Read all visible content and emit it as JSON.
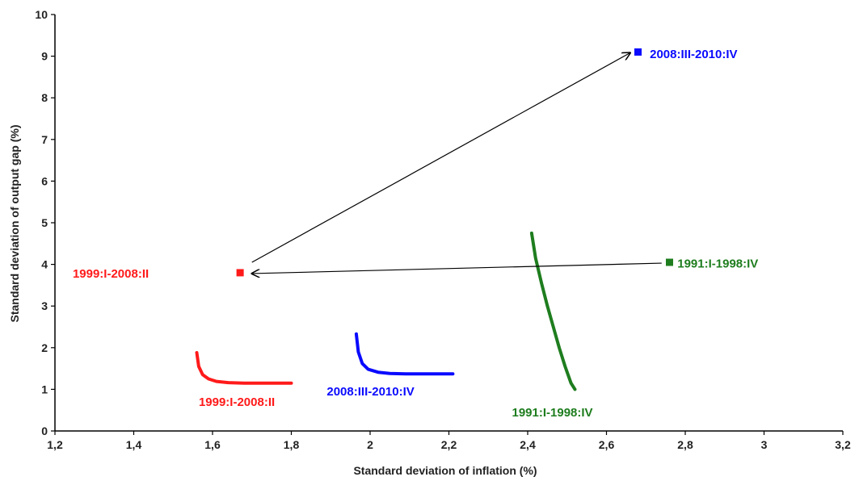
{
  "chart_data": {
    "type": "scatter",
    "title": "",
    "xlabel": "Standard deviation of inflation (%)",
    "ylabel": "Standard deviation of output gap (%)",
    "xlim": [
      1.2,
      3.2
    ],
    "ylim": [
      0,
      10
    ],
    "x_ticks": [
      1.2,
      1.4,
      1.6,
      1.8,
      2.0,
      2.2,
      2.4,
      2.6,
      2.8,
      3.0,
      3.2
    ],
    "x_tick_labels": [
      "1,2",
      "1,4",
      "1,6",
      "1,8",
      "2",
      "2,2",
      "2,4",
      "2,6",
      "2,8",
      "3",
      "3,2"
    ],
    "y_ticks": [
      0,
      1,
      2,
      3,
      4,
      5,
      6,
      7,
      8,
      9,
      10
    ],
    "y_tick_labels": [
      "0",
      "1",
      "2",
      "3",
      "4",
      "5",
      "6",
      "7",
      "8",
      "9",
      "10"
    ],
    "grid": false,
    "points": [
      {
        "label": "1999:I-2008:II",
        "x": 1.67,
        "y": 3.8,
        "color": "#ff1a1a"
      },
      {
        "label": "2008:III-2010:IV",
        "x": 2.68,
        "y": 9.1,
        "color": "#0a0aff"
      },
      {
        "label": "1991:I-1998:IV",
        "x": 2.76,
        "y": 4.05,
        "color": "#1e7d1e"
      }
    ],
    "frontiers": [
      {
        "label": "1999:I-2008:II",
        "color": "#ff1a1a",
        "x": [
          1.56,
          1.565,
          1.575,
          1.59,
          1.61,
          1.64,
          1.68,
          1.72,
          1.76,
          1.8
        ],
        "y": [
          1.88,
          1.55,
          1.35,
          1.25,
          1.19,
          1.16,
          1.15,
          1.15,
          1.15,
          1.15
        ]
      },
      {
        "label": "2008:III-2010:IV",
        "color": "#0a0aff",
        "x": [
          1.965,
          1.97,
          1.98,
          1.995,
          2.02,
          2.05,
          2.09,
          2.13,
          2.17,
          2.21
        ],
        "y": [
          2.33,
          1.9,
          1.62,
          1.48,
          1.41,
          1.38,
          1.37,
          1.37,
          1.37,
          1.37
        ]
      },
      {
        "label": "1991:I-1998:IV",
        "color": "#1e7d1e",
        "x": [
          2.41,
          2.42,
          2.435,
          2.45,
          2.465,
          2.48,
          2.495,
          2.51,
          2.52
        ],
        "y": [
          4.75,
          4.15,
          3.55,
          3.0,
          2.5,
          2.0,
          1.55,
          1.15,
          1.0
        ]
      }
    ],
    "arrows": [
      {
        "from": [
          1.7,
          4.05
        ],
        "to": [
          2.66,
          9.08
        ]
      },
      {
        "from": [
          2.74,
          4.03
        ],
        "to": [
          1.7,
          3.78
        ]
      }
    ],
    "labels": [
      {
        "text": "1999:I-2008:II",
        "x": 1.245,
        "y": 3.78,
        "color": "#ff1a1a"
      },
      {
        "text": "2008:III-2010:IV",
        "x": 2.71,
        "y": 9.05,
        "color": "#0a0aff"
      },
      {
        "text": "1991:I-1998:IV",
        "x": 2.78,
        "y": 4.02,
        "color": "#1e7d1e"
      },
      {
        "text": "1999:I-2008:II",
        "x": 1.565,
        "y": 0.7,
        "color": "#ff1a1a"
      },
      {
        "text": "2008:III-2010:IV",
        "x": 1.89,
        "y": 0.95,
        "color": "#0a0aff"
      },
      {
        "text": "1991:I-1998:IV",
        "x": 2.36,
        "y": 0.45,
        "color": "#1e7d1e"
      }
    ]
  }
}
